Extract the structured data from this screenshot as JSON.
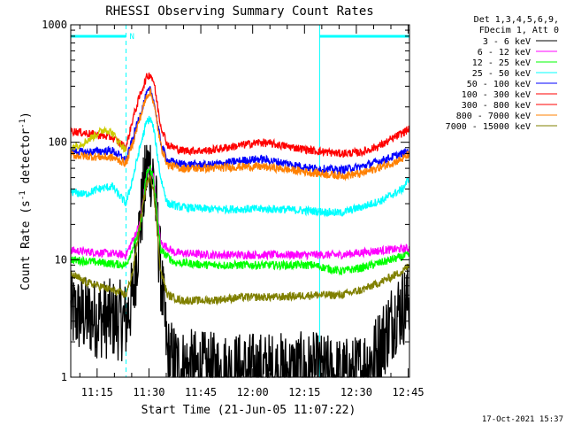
{
  "chart_data": {
    "type": "line",
    "title": "RHESSI Observing Summary Count Rates",
    "xlabel": "Start Time (21-Jun-05 11:07:22)",
    "ylabel_main": "Count Rate (s",
    "ylabel_sup1": "-1",
    "ylabel_mid": " detector",
    "ylabel_sup2": "-1",
    "ylabel_end": ")",
    "footer": "17-Oct-2021 15:37",
    "y_scale": "log",
    "ylim": [
      1,
      1000
    ],
    "xlim_minutes": [
      0,
      98
    ],
    "x_ticks": [
      {
        "label": "11:15",
        "min": 7.63
      },
      {
        "label": "11:30",
        "min": 22.63
      },
      {
        "label": "11:45",
        "min": 37.63
      },
      {
        "label": "12:00",
        "min": 52.63
      },
      {
        "label": "12:15",
        "min": 67.63
      },
      {
        "label": "12:30",
        "min": 82.63
      },
      {
        "label": "12:45",
        "min": 97.63
      }
    ],
    "y_ticks": [
      {
        "label": "1",
        "value": 1
      },
      {
        "label": "10",
        "value": 10
      },
      {
        "label": "100",
        "value": 100
      },
      {
        "label": "1000",
        "value": 1000
      }
    ],
    "legend_header": [
      "Det 1,3,4,5,6,9,",
      "FDecim 1, Att 0"
    ],
    "night_marker": "N",
    "night_intervals": [
      [
        0,
        16
      ],
      [
        72,
        98
      ]
    ],
    "series": [
      {
        "name": "3 - 6 keV",
        "color": "#000000",
        "x": [
          0,
          4,
          8,
          12,
          16,
          18,
          20,
          22,
          23,
          24,
          26,
          28,
          32,
          40,
          50,
          60,
          70,
          78,
          82,
          88,
          94,
          98
        ],
        "y": [
          3.5,
          3.3,
          3.2,
          3.1,
          3.0,
          5,
          20,
          58,
          62,
          50,
          8,
          1.5,
          1.2,
          1.1,
          1.1,
          1.1,
          1.1,
          1.0,
          1.0,
          1.5,
          3.5,
          4.5
        ]
      },
      {
        "name": "6 - 12 keV",
        "color": "#ff00ff",
        "x": [
          0,
          8,
          16,
          20,
          22,
          23,
          24,
          26,
          30,
          40,
          50,
          60,
          70,
          78,
          84,
          90,
          98
        ],
        "y": [
          12,
          11.5,
          11,
          20,
          55,
          60,
          50,
          14,
          11.5,
          11,
          11,
          11,
          11,
          11,
          11.5,
          12,
          12.5
        ]
      },
      {
        "name": "12 - 25 keV",
        "color": "#00ff00",
        "x": [
          0,
          8,
          16,
          20,
          22,
          23,
          24,
          26,
          30,
          40,
          50,
          60,
          70,
          78,
          84,
          90,
          98
        ],
        "y": [
          10,
          9.5,
          9,
          18,
          55,
          60,
          48,
          12,
          9.5,
          9,
          9,
          9,
          9,
          8,
          8.5,
          9.5,
          11
        ]
      },
      {
        "name": "25 - 50 keV",
        "color": "#00ffff",
        "x": [
          0,
          4,
          8,
          12,
          16,
          18,
          20,
          22,
          23,
          24,
          26,
          28,
          32,
          40,
          50,
          60,
          70,
          78,
          84,
          90,
          96,
          98
        ],
        "y": [
          38,
          36,
          40,
          42,
          30,
          50,
          90,
          150,
          160,
          130,
          50,
          30,
          28,
          27,
          27,
          27,
          26,
          25,
          28,
          32,
          40,
          50
        ]
      },
      {
        "name": "50 - 100 keV",
        "color": "#0000ff",
        "x": [
          0,
          4,
          8,
          12,
          16,
          18,
          20,
          22,
          23,
          24,
          26,
          28,
          32,
          40,
          50,
          55,
          60,
          70,
          78,
          84,
          90,
          96,
          98
        ],
        "y": [
          85,
          82,
          84,
          85,
          70,
          110,
          170,
          260,
          280,
          230,
          100,
          70,
          65,
          64,
          70,
          72,
          68,
          60,
          58,
          62,
          70,
          80,
          85
        ]
      },
      {
        "name": "100 - 300 keV",
        "color": "#ff0000",
        "x": [
          0,
          4,
          8,
          12,
          16,
          18,
          20,
          22,
          23,
          24,
          26,
          28,
          32,
          40,
          50,
          55,
          60,
          70,
          78,
          84,
          90,
          96,
          98
        ],
        "y": [
          125,
          120,
          115,
          110,
          90,
          160,
          250,
          360,
          380,
          330,
          140,
          95,
          85,
          85,
          95,
          100,
          95,
          85,
          80,
          82,
          95,
          120,
          130
        ]
      },
      {
        "name": "300 - 800 keV",
        "color": "#ff0000",
        "draw": false
      },
      {
        "name": "800 - 7000 keV",
        "color": "#ff8000",
        "x": [
          0,
          4,
          8,
          12,
          16,
          18,
          20,
          22,
          23,
          24,
          26,
          28,
          32,
          40,
          50,
          55,
          60,
          70,
          78,
          84,
          90,
          96,
          98
        ],
        "y": [
          78,
          76,
          75,
          74,
          66,
          100,
          160,
          250,
          270,
          220,
          95,
          64,
          60,
          60,
          62,
          62,
          60,
          55,
          52,
          54,
          62,
          72,
          80
        ]
      },
      {
        "name": "7000 - 15000 keV",
        "color": "#808000",
        "x": [
          0,
          4,
          8,
          12,
          16,
          18,
          20,
          22,
          23,
          24,
          26,
          28,
          32,
          40,
          50,
          60,
          70,
          78,
          84,
          90,
          96,
          98
        ],
        "y": [
          7.5,
          6.5,
          6,
          5.5,
          5,
          8,
          20,
          45,
          50,
          40,
          8,
          5,
          4.5,
          4.5,
          4.8,
          4.8,
          5,
          5,
          5.5,
          6.5,
          8,
          9
        ]
      },
      {
        "name": "",
        "color": "#cccc00",
        "x": [
          0,
          4,
          8,
          10,
          12,
          14,
          16
        ],
        "y": [
          90,
          100,
          120,
          130,
          120,
          100,
          85
        ]
      }
    ]
  }
}
